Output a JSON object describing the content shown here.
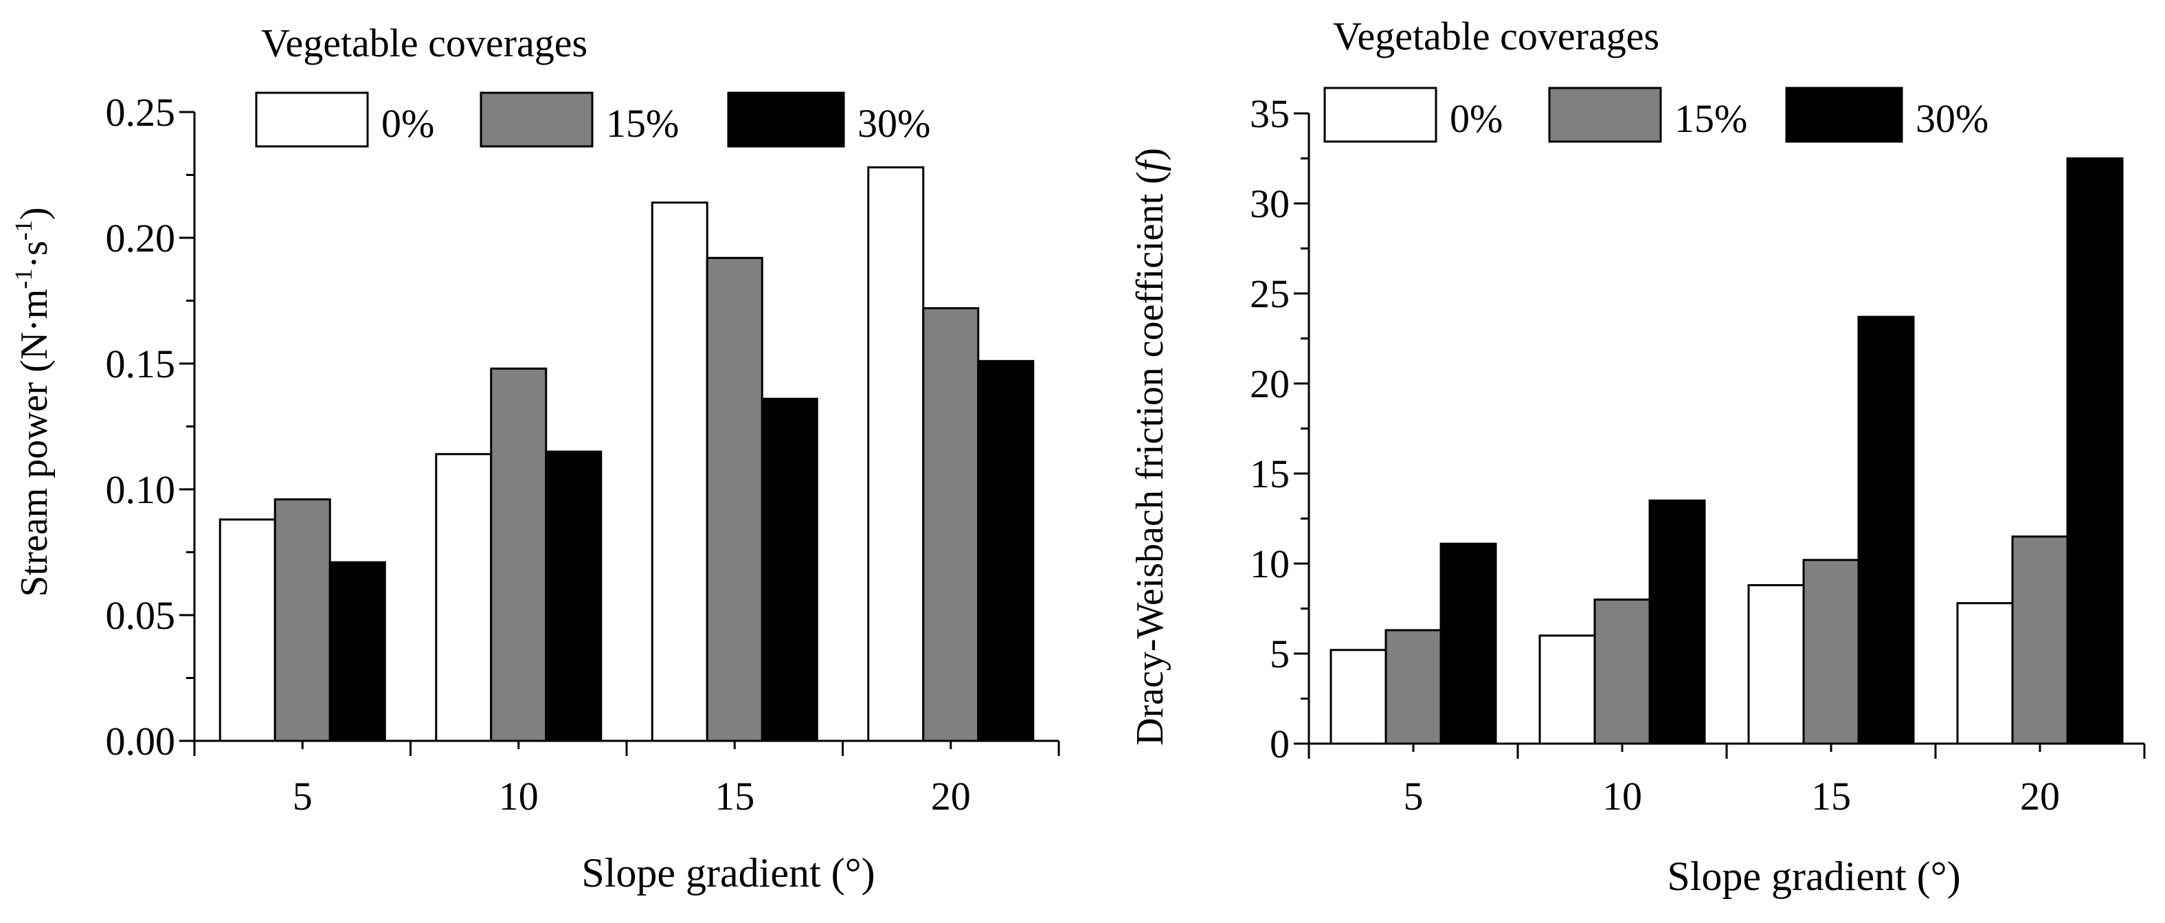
{
  "chart_data": [
    {
      "type": "bar",
      "title": "",
      "legend_title": "Vegetable coverages",
      "legend_position": "top",
      "xlabel": "Slope gradient (°)",
      "ylabel_parts": [
        "Stream power (N·m",
        "-1",
        "·s",
        "-1",
        ")"
      ],
      "categories": [
        "5",
        "10",
        "15",
        "20"
      ],
      "series": [
        {
          "name": "0%",
          "color": "#ffffff",
          "values": [
            0.088,
            0.114,
            0.214,
            0.228
          ]
        },
        {
          "name": "15%",
          "color": "#808080",
          "values": [
            0.096,
            0.148,
            0.192,
            0.172
          ]
        },
        {
          "name": "30%",
          "color": "#000000",
          "values": [
            0.071,
            0.115,
            0.136,
            0.151
          ]
        }
      ],
      "ylim": [
        0,
        0.25
      ],
      "yticks": [
        "0.00",
        "0.05",
        "0.10",
        "0.15",
        "0.20",
        "0.25"
      ],
      "grid": false
    },
    {
      "type": "bar",
      "title": "",
      "legend_title": "Vegetable coverages",
      "legend_position": "top",
      "xlabel": "Slope gradient (°)",
      "ylabel_parts": [
        "Dracy-Weisbach friction coefficient (",
        "f",
        ")"
      ],
      "categories": [
        "5",
        "10",
        "15",
        "20"
      ],
      "series": [
        {
          "name": "0%",
          "color": "#ffffff",
          "values": [
            5.2,
            6.0,
            8.8,
            7.8
          ]
        },
        {
          "name": "15%",
          "color": "#808080",
          "values": [
            6.3,
            8.0,
            10.2,
            11.5
          ]
        },
        {
          "name": "30%",
          "color": "#000000",
          "values": [
            11.1,
            13.5,
            23.7,
            32.5
          ]
        }
      ],
      "ylim": [
        0,
        35
      ],
      "yticks": [
        "0",
        "5",
        "10",
        "15",
        "20",
        "25",
        "30",
        "35"
      ],
      "grid": false
    }
  ]
}
